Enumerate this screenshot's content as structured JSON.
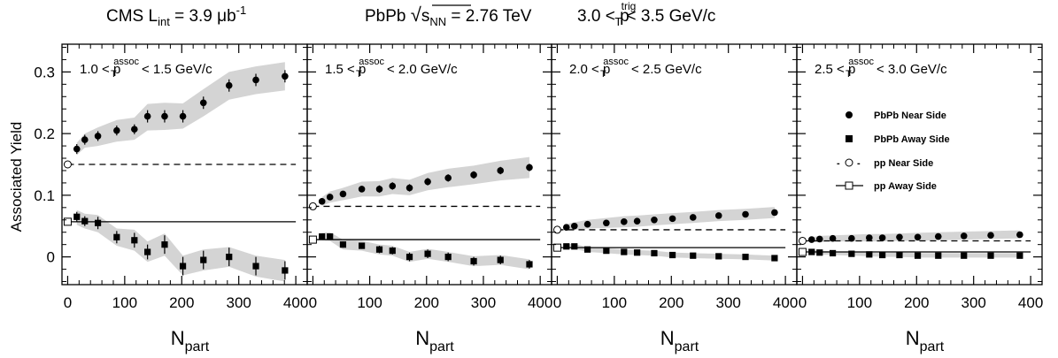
{
  "header": {
    "lumi_prefix": "CMS L",
    "lumi_sub": "int",
    "lumi_eq": " = 3.9 μb",
    "lumi_sup": "-1",
    "system": "PbPb ",
    "sqrt_sym": "√",
    "sqrt_s": "s",
    "sqrt_sub": "NN",
    "energy": " = 2.76 TeV",
    "trig_lo": "3.0 < p",
    "trig_sup": "trig",
    "trig_sub": "T",
    "trig_hi": " < 3.5 GeV/c"
  },
  "axes": {
    "y_label": "Associated Yield",
    "x_label_main": "N",
    "x_label_sub": "part",
    "x_ticks": [
      0,
      100,
      200,
      300,
      400
    ],
    "x_tick_labels": [
      "0",
      "100",
      "200",
      "300",
      "400"
    ],
    "y_ticks": [
      0,
      0.1,
      0.2,
      0.3
    ],
    "y_tick_labels": [
      "0",
      "0.1",
      "0.2",
      "0.3"
    ]
  },
  "legend": {
    "near_pbpb": "PbPb Near Side",
    "away_pbpb": "PbPb Away Side",
    "near_pp": "pp Near Side",
    "away_pp": "pp Away Side",
    "dash": "-",
    "dash2": "-"
  },
  "colors": {
    "band": "#d4d4d4",
    "marker": "#000000"
  },
  "chart_data": {
    "type": "scatter",
    "xlim": [
      -10,
      420
    ],
    "ylim": [
      -0.045,
      0.345
    ],
    "grid": false,
    "legend_location": "right side of fourth panel",
    "panels": [
      {
        "label_lo": "1.0 < p",
        "label_sup": "assoc",
        "label_sub": "T",
        "label_hi": " < 1.5 GeV/c",
        "near_x": [
          16,
          30,
          53,
          86,
          117,
          140,
          170,
          202,
          238,
          283,
          330,
          381
        ],
        "near_y": [
          0.175,
          0.19,
          0.196,
          0.205,
          0.207,
          0.228,
          0.228,
          0.228,
          0.25,
          0.278,
          0.287,
          0.293
        ],
        "near_err": [
          0.008,
          0.008,
          0.008,
          0.008,
          0.008,
          0.01,
          0.01,
          0.01,
          0.01,
          0.01,
          0.01,
          0.01
        ],
        "near_band": [
          [
            0.165,
            0.185
          ],
          [
            0.177,
            0.2
          ],
          [
            0.18,
            0.21
          ],
          [
            0.187,
            0.222
          ],
          [
            0.19,
            0.226
          ],
          [
            0.205,
            0.248
          ],
          [
            0.206,
            0.25
          ],
          [
            0.208,
            0.249
          ],
          [
            0.228,
            0.272
          ],
          [
            0.255,
            0.3
          ],
          [
            0.264,
            0.309
          ],
          [
            0.27,
            0.316
          ]
        ],
        "away_x": [
          16,
          30,
          53,
          86,
          117,
          140,
          170,
          202,
          238,
          283,
          330,
          381
        ],
        "away_y": [
          0.065,
          0.058,
          0.055,
          0.032,
          0.027,
          0.008,
          0.02,
          -0.015,
          -0.005,
          0.0,
          -0.015,
          -0.022
        ],
        "away_err": [
          0.008,
          0.008,
          0.01,
          0.01,
          0.012,
          0.012,
          0.015,
          0.015,
          0.015,
          0.015,
          0.015,
          0.015
        ],
        "away_band": [
          [
            0.052,
            0.076
          ],
          [
            0.046,
            0.07
          ],
          [
            0.04,
            0.068
          ],
          [
            0.018,
            0.046
          ],
          [
            0.01,
            0.044
          ],
          [
            -0.008,
            0.025
          ],
          [
            0.002,
            0.038
          ],
          [
            -0.03,
            0.002
          ],
          [
            -0.022,
            0.012
          ],
          [
            -0.016,
            0.016
          ],
          [
            -0.032,
            0.002
          ],
          [
            -0.04,
            -0.005
          ]
        ],
        "pp_near": 0.15,
        "pp_away": 0.057
      },
      {
        "label_lo": "1.5 < p",
        "label_sup": "assoc",
        "label_sub": "T",
        "label_hi": " < 2.0 GeV/c",
        "near_x": [
          16,
          30,
          53,
          86,
          117,
          140,
          170,
          202,
          238,
          283,
          330,
          381
        ],
        "near_y": [
          0.09,
          0.097,
          0.102,
          0.11,
          0.11,
          0.115,
          0.112,
          0.122,
          0.128,
          0.133,
          0.14,
          0.145
        ],
        "near_err": [
          0.005,
          0.005,
          0.005,
          0.005,
          0.006,
          0.006,
          0.006,
          0.006,
          0.006,
          0.006,
          0.006,
          0.006
        ],
        "near_band": [
          [
            0.083,
            0.097
          ],
          [
            0.088,
            0.106
          ],
          [
            0.092,
            0.112
          ],
          [
            0.098,
            0.122
          ],
          [
            0.098,
            0.123
          ],
          [
            0.102,
            0.128
          ],
          [
            0.1,
            0.125
          ],
          [
            0.108,
            0.136
          ],
          [
            0.113,
            0.143
          ],
          [
            0.118,
            0.148
          ],
          [
            0.124,
            0.156
          ],
          [
            0.128,
            0.162
          ]
        ],
        "away_x": [
          16,
          30,
          53,
          86,
          117,
          140,
          170,
          202,
          238,
          283,
          330,
          381
        ],
        "away_y": [
          0.033,
          0.033,
          0.02,
          0.018,
          0.012,
          0.01,
          0.0,
          0.005,
          0.0,
          -0.007,
          -0.005,
          -0.012
        ],
        "away_err": [
          0.004,
          0.004,
          0.005,
          0.005,
          0.006,
          0.006,
          0.007,
          0.007,
          0.007,
          0.007,
          0.007,
          0.007
        ],
        "away_band": [
          [
            0.027,
            0.039
          ],
          [
            0.026,
            0.04
          ],
          [
            0.012,
            0.028
          ],
          [
            0.01,
            0.026
          ],
          [
            0.004,
            0.02
          ],
          [
            0.002,
            0.018
          ],
          [
            -0.008,
            0.008
          ],
          [
            -0.003,
            0.013
          ],
          [
            -0.008,
            0.008
          ],
          [
            -0.015,
            0.001
          ],
          [
            -0.013,
            0.003
          ],
          [
            -0.02,
            -0.004
          ]
        ],
        "pp_near": 0.082,
        "pp_away": 0.028
      },
      {
        "label_lo": "2.0 < p",
        "label_sup": "assoc",
        "label_sub": "T",
        "label_hi": " < 2.5 GeV/c",
        "near_x": [
          16,
          30,
          53,
          86,
          117,
          140,
          170,
          202,
          238,
          283,
          330,
          381
        ],
        "near_y": [
          0.048,
          0.05,
          0.053,
          0.055,
          0.057,
          0.058,
          0.06,
          0.062,
          0.064,
          0.067,
          0.069,
          0.072
        ],
        "near_err": [
          0.003,
          0.003,
          0.003,
          0.003,
          0.003,
          0.003,
          0.003,
          0.003,
          0.003,
          0.003,
          0.003,
          0.003
        ],
        "near_band": [
          [
            0.043,
            0.053
          ],
          [
            0.044,
            0.056
          ],
          [
            0.046,
            0.06
          ],
          [
            0.047,
            0.063
          ],
          [
            0.048,
            0.066
          ],
          [
            0.049,
            0.067
          ],
          [
            0.051,
            0.069
          ],
          [
            0.053,
            0.071
          ],
          [
            0.055,
            0.073
          ],
          [
            0.058,
            0.076
          ],
          [
            0.06,
            0.078
          ],
          [
            0.063,
            0.081
          ]
        ],
        "away_x": [
          16,
          30,
          53,
          86,
          117,
          140,
          170,
          202,
          238,
          283,
          330,
          381
        ],
        "away_y": [
          0.017,
          0.017,
          0.012,
          0.01,
          0.008,
          0.007,
          0.006,
          0.003,
          0.002,
          0.001,
          0.0,
          -0.002
        ],
        "away_err": [
          0.002,
          0.002,
          0.002,
          0.002,
          0.002,
          0.002,
          0.002,
          0.002,
          0.002,
          0.002,
          0.002,
          0.002
        ],
        "away_band": [
          [
            0.013,
            0.021
          ],
          [
            0.013,
            0.021
          ],
          [
            0.008,
            0.016
          ],
          [
            0.006,
            0.014
          ],
          [
            0.004,
            0.012
          ],
          [
            0.003,
            0.011
          ],
          [
            0.002,
            0.01
          ],
          [
            -0.001,
            0.007
          ],
          [
            -0.002,
            0.006
          ],
          [
            -0.003,
            0.005
          ],
          [
            -0.004,
            0.004
          ],
          [
            -0.006,
            0.002
          ]
        ],
        "pp_near": 0.044,
        "pp_away": 0.015
      },
      {
        "label_lo": "2.5 < p",
        "label_sup": "assoc",
        "label_sub": "T",
        "label_hi": " < 3.0 GeV/c",
        "near_x": [
          16,
          30,
          53,
          86,
          117,
          140,
          170,
          202,
          238,
          283,
          330,
          381
        ],
        "near_y": [
          0.028,
          0.029,
          0.03,
          0.03,
          0.031,
          0.031,
          0.032,
          0.032,
          0.033,
          0.034,
          0.035,
          0.036
        ],
        "near_err": [
          0.002,
          0.002,
          0.002,
          0.002,
          0.002,
          0.002,
          0.002,
          0.002,
          0.002,
          0.002,
          0.002,
          0.002
        ],
        "near_band": [
          [
            0.024,
            0.032
          ],
          [
            0.024,
            0.034
          ],
          [
            0.025,
            0.035
          ],
          [
            0.025,
            0.036
          ],
          [
            0.025,
            0.037
          ],
          [
            0.025,
            0.037
          ],
          [
            0.026,
            0.038
          ],
          [
            0.026,
            0.039
          ],
          [
            0.027,
            0.04
          ],
          [
            0.028,
            0.041
          ],
          [
            0.029,
            0.042
          ],
          [
            0.03,
            0.043
          ]
        ],
        "away_x": [
          16,
          30,
          53,
          86,
          117,
          140,
          170,
          202,
          238,
          283,
          330,
          381
        ],
        "away_y": [
          0.008,
          0.007,
          0.006,
          0.005,
          0.004,
          0.003,
          0.003,
          0.002,
          0.002,
          0.002,
          0.002,
          0.002
        ],
        "away_err": [
          0.002,
          0.002,
          0.002,
          0.002,
          0.002,
          0.002,
          0.002,
          0.002,
          0.002,
          0.002,
          0.002,
          0.002
        ],
        "away_band": [
          [
            0.005,
            0.011
          ],
          [
            0.004,
            0.01
          ],
          [
            0.003,
            0.009
          ],
          [
            0.002,
            0.008
          ],
          [
            0.001,
            0.007
          ],
          [
            0.0,
            0.006
          ],
          [
            0.0,
            0.007
          ],
          [
            -0.001,
            0.006
          ],
          [
            -0.001,
            0.006
          ],
          [
            -0.001,
            0.006
          ],
          [
            -0.001,
            0.006
          ],
          [
            -0.001,
            0.006
          ]
        ],
        "pp_near": 0.026,
        "pp_away": 0.008
      }
    ]
  }
}
